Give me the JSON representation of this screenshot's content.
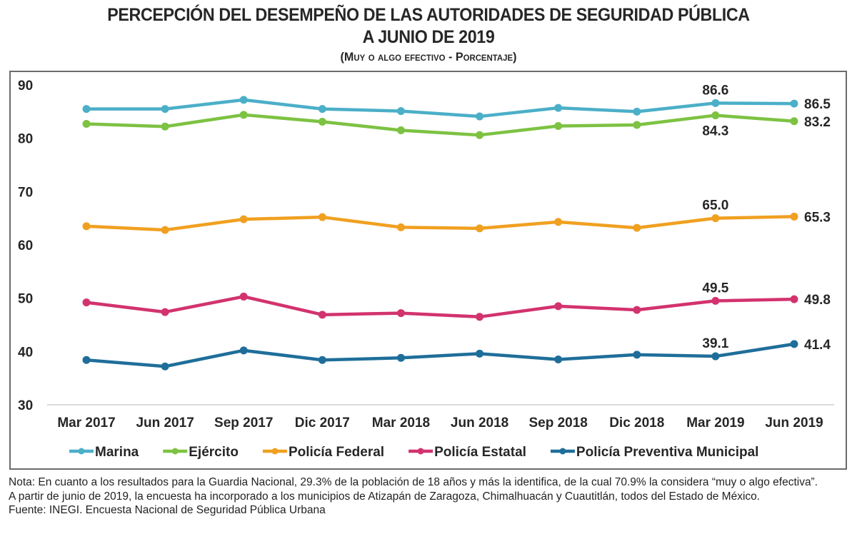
{
  "header": {
    "title_line1": "PERCEPCIÓN DEL DESEMPEÑO DE LAS AUTORIDADES DE SEGURIDAD PÚBLICA",
    "title_line2": "A JUNIO DE 2019",
    "subtitle": "(Muy o algo efectivo - Porcentaje)"
  },
  "chart_data": {
    "type": "line",
    "title": "PERCEPCIÓN DEL DESEMPEÑO DE LAS AUTORIDADES DE SEGURIDAD PÚBLICA A JUNIO DE 2019",
    "subtitle": "(Muy o algo efectivo - Porcentaje)",
    "xlabel": "",
    "ylabel": "",
    "ylim": [
      30,
      90
    ],
    "yticks": [
      30,
      40,
      50,
      60,
      70,
      80,
      90
    ],
    "grid": false,
    "legend_position": "bottom",
    "categories": [
      "Mar 2017",
      "Jun 2017",
      "Sep 2017",
      "Dic 2017",
      "Mar 2018",
      "Jun 2018",
      "Sep 2018",
      "Dic 2018",
      "Mar 2019",
      "Jun 2019"
    ],
    "series": [
      {
        "name": "Marina",
        "color": "#4bafc8",
        "values": [
          85.5,
          85.5,
          87.2,
          85.5,
          85.1,
          84.1,
          85.7,
          85.0,
          86.6,
          86.5
        ],
        "labels": [
          {
            "index": 8,
            "text": "86.6",
            "pos": "above"
          },
          {
            "index": 9,
            "text": "86.5",
            "pos": "right"
          }
        ]
      },
      {
        "name": "Ejército",
        "color": "#7dc242",
        "values": [
          82.7,
          82.2,
          84.4,
          83.1,
          81.5,
          80.6,
          82.3,
          82.5,
          84.3,
          83.2
        ],
        "labels": [
          {
            "index": 8,
            "text": "84.3",
            "pos": "below"
          },
          {
            "index": 9,
            "text": "83.2",
            "pos": "right"
          }
        ]
      },
      {
        "name": "Policía Federal",
        "color": "#f0a020",
        "values": [
          63.5,
          62.8,
          64.8,
          65.2,
          63.3,
          63.1,
          64.3,
          63.2,
          65.0,
          65.3
        ],
        "labels": [
          {
            "index": 8,
            "text": "65.0",
            "pos": "above"
          },
          {
            "index": 9,
            "text": "65.3",
            "pos": "right"
          }
        ]
      },
      {
        "name": "Policía Estatal",
        "color": "#d2336e",
        "values": [
          49.2,
          47.4,
          50.3,
          46.9,
          47.2,
          46.5,
          48.5,
          47.8,
          49.5,
          49.8
        ],
        "labels": [
          {
            "index": 8,
            "text": "49.5",
            "pos": "above"
          },
          {
            "index": 9,
            "text": "49.8",
            "pos": "right"
          }
        ]
      },
      {
        "name": "Policía Preventiva Municipal",
        "color": "#1f6e9a",
        "values": [
          38.4,
          37.2,
          40.2,
          38.4,
          38.8,
          39.6,
          38.5,
          39.4,
          39.1,
          41.4
        ],
        "labels": [
          {
            "index": 8,
            "text": "39.1",
            "pos": "above"
          },
          {
            "index": 9,
            "text": "41.4",
            "pos": "right"
          }
        ]
      }
    ]
  },
  "notes": {
    "note1": "Nota: En cuanto a los resultados para la Guardia Nacional, 29.3% de la población de 18 años y más la identifica, de la cual 70.9% la considera “muy o algo efectiva”.",
    "note2": "A partir de junio de 2019, la encuesta ha incorporado a los municipios de Atizapán de Zaragoza, Chimalhuacán y Cuautitlán, todos del Estado de México.",
    "source": "Fuente: INEGI. Encuesta Nacional de Seguridad Pública Urbana"
  }
}
